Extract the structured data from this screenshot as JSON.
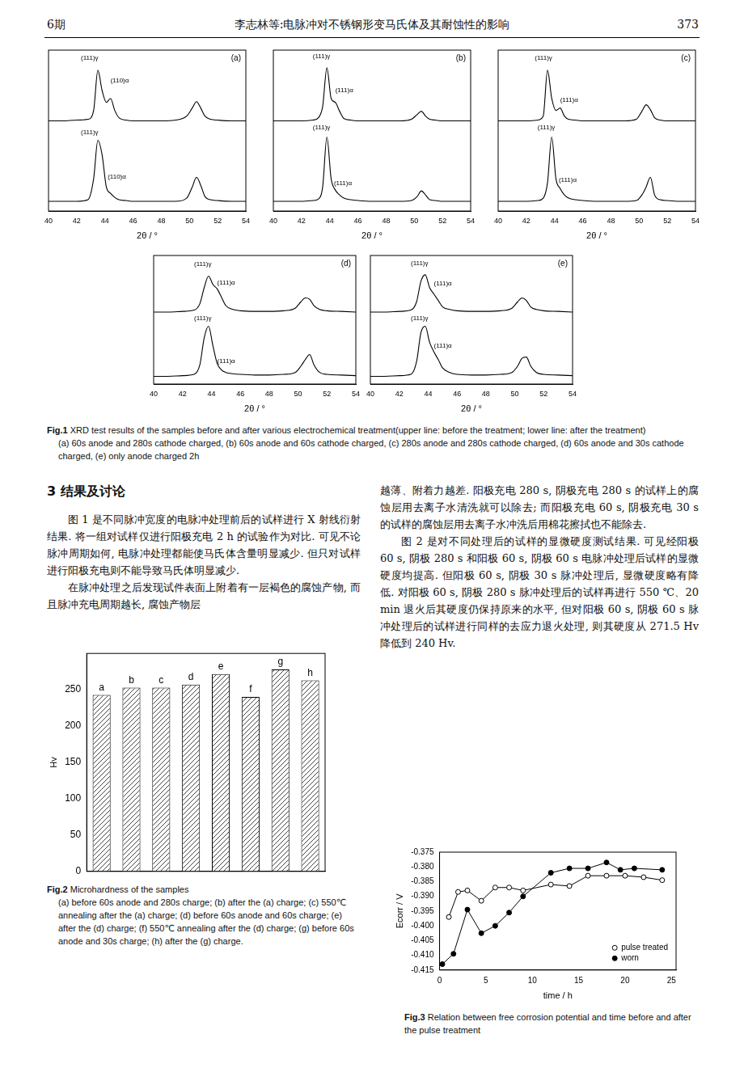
{
  "header": {
    "issue": "6期",
    "title": "李志林等:电脉冲对不锈钢形变马氏体及其耐蚀性的影响",
    "page": "373"
  },
  "chart_data": [
    {
      "type": "line",
      "title": "(a)",
      "x_label": "2θ / °",
      "tick_labels": "x",
      "grid": false,
      "xlim": [
        40,
        54
      ],
      "xticks": [
        40,
        42,
        44,
        46,
        48,
        50,
        52,
        54
      ],
      "ylim": [
        0,
        200
      ],
      "x": [
        40,
        41,
        42,
        42.8,
        43.2,
        43.5,
        43.8,
        44.1,
        44.4,
        44.7,
        45,
        45.5,
        46,
        47,
        48,
        49,
        49.8,
        50.2,
        50.5,
        50.8,
        51.1,
        51.5,
        52,
        53,
        54
      ],
      "series": [
        {
          "color": "#000000",
          "values": [
            112,
            112,
            113,
            114,
            125,
            175,
            150,
            135,
            140,
            125,
            116,
            113,
            112,
            112,
            112,
            113,
            118,
            128,
            136,
            128,
            118,
            114,
            113,
            112,
            112
          ]
        },
        {
          "color": "#000000",
          "values": [
            12,
            12,
            12,
            14,
            40,
            88,
            70,
            30,
            22,
            17,
            14,
            13,
            12,
            12,
            12,
            12,
            16,
            30,
            42,
            32,
            18,
            14,
            13,
            12,
            12
          ]
        }
      ],
      "annotations": [
        {
          "text": "(111)γ",
          "x": 42.3,
          "y": 190
        },
        {
          "text": "(110)α",
          "x": 44.4,
          "y": 162
        },
        {
          "text": "(111)γ",
          "x": 42.3,
          "y": 98
        },
        {
          "text": "(110)α",
          "x": 44.2,
          "y": 42
        }
      ]
    },
    {
      "type": "line",
      "title": "(b)",
      "x_label": "2θ / °",
      "tick_labels": "x",
      "grid": false,
      "xlim": [
        40,
        54
      ],
      "xticks": [
        40,
        42,
        44,
        46,
        48,
        50,
        52,
        54
      ],
      "ylim": [
        0,
        200
      ],
      "x": [
        40,
        41,
        42,
        42.8,
        43.2,
        43.5,
        43.8,
        44.1,
        44.4,
        44.7,
        45,
        45.5,
        46,
        47,
        48,
        49,
        49.8,
        50.2,
        50.5,
        50.8,
        51.1,
        51.5,
        52,
        53,
        54
      ],
      "series": [
        {
          "color": "#000000",
          "values": [
            112,
            112,
            112,
            113,
            116,
            130,
            178,
            140,
            135,
            124,
            115,
            113,
            112,
            112,
            112,
            112,
            114,
            120,
            124,
            118,
            114,
            113,
            112,
            112,
            112
          ]
        },
        {
          "color": "#000000",
          "values": [
            12,
            12,
            12,
            13,
            15,
            30,
            92,
            40,
            26,
            20,
            16,
            14,
            13,
            12,
            12,
            12,
            13,
            18,
            25,
            20,
            14,
            13,
            12,
            12,
            12
          ]
        }
      ],
      "annotations": [
        {
          "text": "(111)γ",
          "x": 42.8,
          "y": 192
        },
        {
          "text": "(111)α",
          "x": 44.4,
          "y": 150
        },
        {
          "text": "(111)γ",
          "x": 42.8,
          "y": 104
        },
        {
          "text": "(111)α",
          "x": 44.3,
          "y": 34
        }
      ]
    },
    {
      "type": "line",
      "title": "(c)",
      "x_label": "2θ / °",
      "tick_labels": "x",
      "grid": false,
      "xlim": [
        40,
        54
      ],
      "xticks": [
        40,
        42,
        44,
        46,
        48,
        50,
        52,
        54
      ],
      "ylim": [
        0,
        200
      ],
      "x": [
        40,
        41,
        42,
        42.8,
        43.2,
        43.5,
        43.8,
        44.1,
        44.4,
        44.7,
        45,
        45.5,
        46,
        47,
        48,
        49,
        49.8,
        50.2,
        50.5,
        50.8,
        51.1,
        51.5,
        52,
        53,
        54
      ],
      "series": [
        {
          "color": "#000000",
          "values": [
            112,
            112,
            112,
            113,
            118,
            175,
            140,
            125,
            128,
            118,
            114,
            113,
            112,
            112,
            112,
            112,
            114,
            124,
            132,
            126,
            116,
            113,
            112,
            112,
            112
          ]
        },
        {
          "color": "#000000",
          "values": [
            12,
            12,
            12,
            13,
            16,
            35,
            92,
            40,
            28,
            20,
            16,
            14,
            13,
            12,
            12,
            12,
            13,
            20,
            30,
            42,
            20,
            14,
            13,
            12,
            12
          ]
        }
      ],
      "annotations": [
        {
          "text": "(111)γ",
          "x": 42.6,
          "y": 190
        },
        {
          "text": "(111)α",
          "x": 44.4,
          "y": 138
        },
        {
          "text": "(111)γ",
          "x": 42.8,
          "y": 104
        },
        {
          "text": "(111)α",
          "x": 44.3,
          "y": 38
        }
      ]
    },
    {
      "type": "line",
      "title": "(d)",
      "x_label": "2θ / °",
      "tick_labels": "x",
      "grid": false,
      "xlim": [
        40,
        54
      ],
      "xticks": [
        40,
        42,
        44,
        46,
        48,
        50,
        52,
        54
      ],
      "ylim": [
        0,
        200
      ],
      "x": [
        40,
        41,
        42,
        42.8,
        43.2,
        43.5,
        43.8,
        44.1,
        44.4,
        44.7,
        45,
        45.5,
        46,
        47,
        48,
        49,
        49.8,
        50.2,
        50.5,
        50.8,
        51.1,
        51.5,
        52,
        53,
        54
      ],
      "series": [
        {
          "color": "#000000",
          "values": [
            112,
            112,
            113,
            115,
            125,
            150,
            168,
            155,
            148,
            135,
            122,
            116,
            114,
            113,
            113,
            114,
            118,
            128,
            134,
            132,
            122,
            116,
            114,
            113,
            112
          ]
        },
        {
          "color": "#000000",
          "values": [
            12,
            12,
            13,
            15,
            30,
            72,
            90,
            60,
            32,
            22,
            18,
            16,
            15,
            14,
            14,
            15,
            18,
            28,
            38,
            46,
            30,
            18,
            15,
            14,
            13
          ]
        }
      ],
      "annotations": [
        {
          "text": "(111)γ",
          "x": 42.8,
          "y": 186
        },
        {
          "text": "(111)α",
          "x": 44.4,
          "y": 158
        },
        {
          "text": "(111)γ",
          "x": 42.8,
          "y": 102
        },
        {
          "text": "(111)α",
          "x": 44.4,
          "y": 36
        }
      ]
    },
    {
      "type": "line",
      "title": "(e)",
      "x_label": "2θ / °",
      "tick_labels": "x",
      "grid": false,
      "xlim": [
        40,
        54
      ],
      "xticks": [
        40,
        42,
        44,
        46,
        48,
        50,
        52,
        54
      ],
      "ylim": [
        0,
        200
      ],
      "x": [
        40,
        41,
        42,
        42.8,
        43.2,
        43.5,
        43.8,
        44.1,
        44.4,
        44.7,
        45,
        45.5,
        46,
        47,
        48,
        49,
        49.8,
        50.2,
        50.5,
        50.8,
        51.1,
        51.5,
        52,
        53,
        54
      ],
      "series": [
        {
          "color": "#000000",
          "values": [
            112,
            112,
            113,
            115,
            128,
            160,
            170,
            150,
            140,
            130,
            120,
            116,
            114,
            113,
            113,
            114,
            118,
            128,
            134,
            130,
            120,
            116,
            114,
            113,
            112
          ]
        },
        {
          "color": "#000000",
          "values": [
            12,
            12,
            13,
            15,
            35,
            80,
            90,
            65,
            50,
            38,
            25,
            18,
            15,
            14,
            14,
            15,
            18,
            28,
            40,
            42,
            28,
            18,
            15,
            14,
            13
          ]
        }
      ],
      "annotations": [
        {
          "text": "(111)γ",
          "x": 42.8,
          "y": 188
        },
        {
          "text": "(111)α",
          "x": 44.4,
          "y": 156
        },
        {
          "text": "(111)γ",
          "x": 42.8,
          "y": 102
        },
        {
          "text": "(111)α",
          "x": 44.4,
          "y": 60
        }
      ]
    },
    {
      "type": "bar",
      "y_label": "Hv",
      "tick_labels": "y",
      "grid": false,
      "color": "#444444",
      "categories": [
        "a",
        "b",
        "c",
        "d",
        "e",
        "f",
        "g",
        "h"
      ],
      "values": [
        243,
        253,
        253,
        257,
        271.5,
        240,
        278,
        263
      ],
      "ylim": [
        0,
        300
      ],
      "yticks": [
        0,
        50,
        100,
        150,
        200,
        250
      ]
    },
    {
      "type": "line",
      "x_label": "time / h",
      "y_label": "Ecorr / V",
      "grid": false,
      "legend": "lower right",
      "xlim": [
        0,
        25.5
      ],
      "xticks": [
        0,
        5,
        10,
        15,
        20,
        25
      ],
      "ylim": [
        -0.415,
        -0.375
      ],
      "yticks": [
        -0.415,
        {
          "value": -0.41,
          "label": "-0.410"
        },
        -0.405,
        {
          "value": -0.4,
          "label": "-0.400"
        },
        -0.395,
        {
          "value": -0.39,
          "label": "-0.390"
        },
        -0.385,
        {
          "value": -0.38,
          "label": "-0.380"
        },
        -0.375
      ],
      "series": [
        {
          "name": "pulse treated",
          "color": "#000000",
          "marker": "open_circle",
          "x": [
            1,
            2,
            3,
            4.5,
            6,
            7.5,
            9,
            12,
            14,
            16,
            18,
            20,
            22,
            24
          ],
          "values": [
            -0.397,
            -0.3885,
            -0.388,
            -0.3915,
            -0.387,
            -0.387,
            -0.388,
            -0.386,
            -0.3865,
            -0.383,
            -0.383,
            -0.383,
            -0.3835,
            -0.3845
          ]
        },
        {
          "name": "worn",
          "color": "#000000",
          "marker": "circle",
          "x": [
            0.3,
            1.5,
            3,
            4.5,
            6,
            7.5,
            9,
            12,
            14,
            16,
            18,
            19.5,
            21,
            24
          ],
          "values": [
            -0.413,
            -0.4095,
            -0.3945,
            -0.4025,
            -0.4,
            -0.3955,
            -0.39,
            -0.382,
            -0.3805,
            -0.3805,
            -0.3785,
            -0.381,
            -0.3805,
            -0.381
          ]
        }
      ]
    }
  ],
  "captions": [
    {
      "label": "Fig.1",
      "text": "XRD test results of the samples before and after various electrochemical treatment(upper line: before the treatment; lower line: after the treatment)",
      "items": "(a) 60s anode and 280s cathode charged, (b) 60s anode and 60s cathode charged, (c) 280s anode and 280s cathode charged, (d) 60s anode and 30s cathode charged, (e) only anode charged 2h"
    },
    {
      "label": "Fig.2",
      "text": "Microhardness of the samples",
      "items": "(a) before 60s anode and 280s charge; (b) after the (a) charge; (c) 550℃ annealing after the (a) charge; (d) before 60s anode and 60s charge; (e) after the (d) charge; (f) 550℃ annealing after the (d) charge; (g) before 60s anode and 30s charge; (h) after the (g) charge."
    },
    {
      "label": "Fig.3",
      "text": "Relation between free corrosion potential and time before and after the pulse treatment",
      "items": ""
    }
  ],
  "section_heading": "3 结果及讨论",
  "left_column": [
    "图 1 是不同脉冲宽度的电脉冲处理前后的试样进行 X 射线衍射结果. 将一组对试样仅进行阳极充电 2 h 的试验作为对比. 可见不论脉冲周期如何, 电脉冲处理都能使马氏体含量明显减少. 但只对试样进行阳极充电则不能导致马氏体明显减少.",
    "在脉冲处理之后发现试件表面上附着有一层褐色的腐蚀产物, 而且脉冲充电周期越长, 腐蚀产物层"
  ],
  "right_column": [
    "越薄、附着力越差. 阳极充电 280 s, 阴极充电 280 s 的试样上的腐蚀层用去离子水清洗就可以除去; 而阳极充电 60 s, 阴极充电 30 s 的试样的腐蚀层用去离子水冲洗后用棉花擦拭也不能除去.",
    "图 2 是对不同处理后的试样的显微硬度测试结果. 可见经阳极 60 s, 阴极 280 s 和阳极 60 s, 阴极 60 s 电脉冲处理后试样的显微硬度均提高. 但阳极 60 s, 阴极 30 s 脉冲处理后, 显微硬度略有降低. 对阳极 60 s, 阴极 280 s 脉冲处理后的试样再进行 550 ℃、20 min 退火后其硬度仍保持原来的水平, 但对阳极 60 s, 阴极 60 s 脉冲处理后的试样进行同样的去应力退火处理, 则其硬度从 271.5 Hv 降低到 240 Hv."
  ]
}
